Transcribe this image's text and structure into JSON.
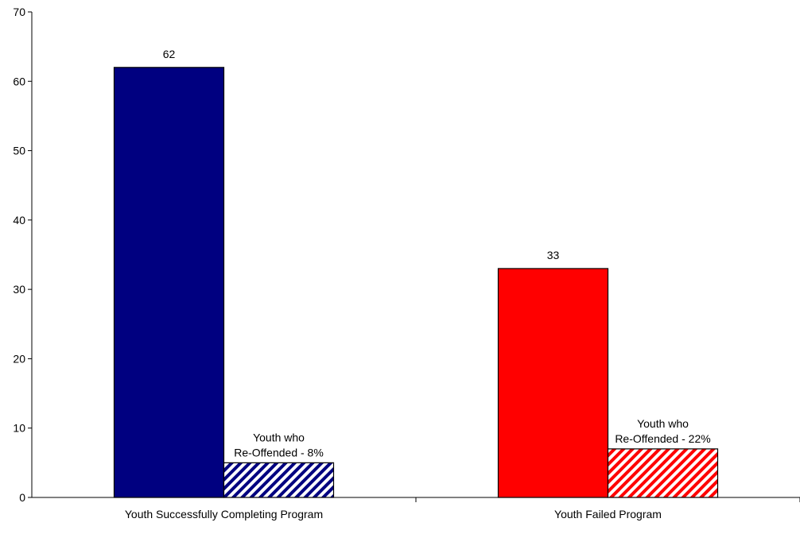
{
  "chart_data": {
    "type": "bar",
    "title": "",
    "xlabel": "",
    "ylabel": "",
    "ylim": [
      0,
      70
    ],
    "yticks": [
      0,
      10,
      20,
      30,
      40,
      50,
      60,
      70
    ],
    "categories": [
      "Youth Successfully Completing Program",
      "Youth Failed Program"
    ],
    "bars": [
      {
        "category_index": 0,
        "slot": 0,
        "value": 62,
        "label": "62",
        "fill": "#000080",
        "pattern": "solid"
      },
      {
        "category_index": 0,
        "slot": 1,
        "value": 5,
        "label_lines": [
          "Youth who",
          "Re-Offended - 8%"
        ],
        "fill": "#000080",
        "pattern": "diagonal-stripes"
      },
      {
        "category_index": 1,
        "slot": 0,
        "value": 33,
        "label": "33",
        "fill": "#ff0000",
        "pattern": "solid"
      },
      {
        "category_index": 1,
        "slot": 1,
        "value": 7,
        "label_lines": [
          "Youth who",
          "Re-Offended - 22%"
        ],
        "fill": "#ff0000",
        "pattern": "diagonal-stripes"
      }
    ],
    "grid": false,
    "legend": "none"
  }
}
